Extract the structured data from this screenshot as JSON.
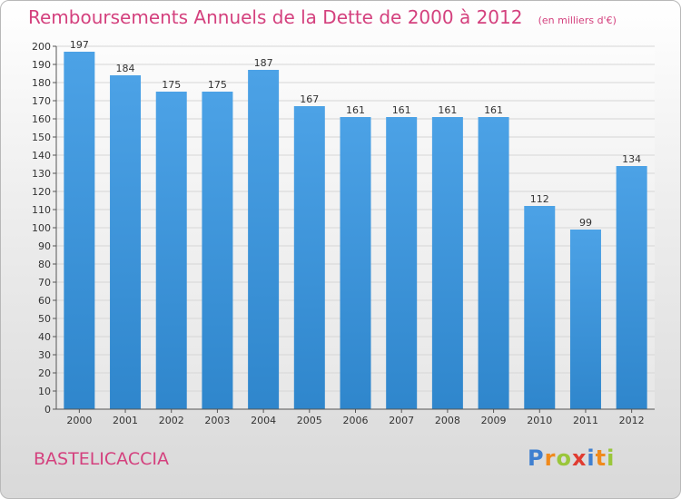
{
  "header": {
    "title": "Remboursements Annuels de la Dette de 2000 à 2012",
    "unit": "(en milliers d'€)"
  },
  "commune": "BASTELICACCIA",
  "logo": {
    "letters": [
      "P",
      "r",
      "o",
      "x",
      "i",
      "t",
      "i"
    ],
    "colors": [
      "#3f7fd0",
      "#f08a1c",
      "#9ac63a",
      "#e03c31",
      "#3f7fd0",
      "#f08a1c",
      "#9ac63a"
    ]
  },
  "colors": {
    "bar": "#4ca2e6",
    "bar_dark": "#2f86cc",
    "title": "#d4417e",
    "grid": "#d6d6d6"
  },
  "chart_data": {
    "type": "bar",
    "categories": [
      "2000",
      "2001",
      "2002",
      "2003",
      "2004",
      "2005",
      "2006",
      "2007",
      "2008",
      "2009",
      "2010",
      "2011",
      "2012"
    ],
    "values": [
      197,
      184,
      175,
      175,
      187,
      167,
      161,
      161,
      161,
      161,
      112,
      99,
      134
    ],
    "ylim": [
      0,
      200
    ],
    "ytick_step": 10,
    "grid": true
  }
}
